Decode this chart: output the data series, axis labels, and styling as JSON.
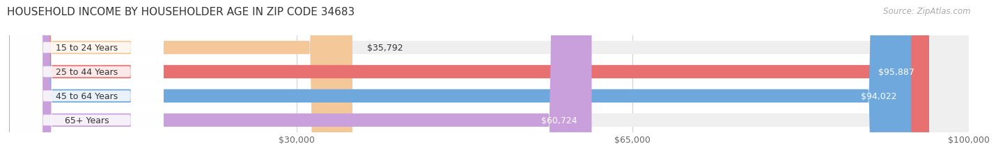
{
  "title": "HOUSEHOLD INCOME BY HOUSEHOLDER AGE IN ZIP CODE 34683",
  "source": "Source: ZipAtlas.com",
  "categories": [
    "15 to 24 Years",
    "25 to 44 Years",
    "45 to 64 Years",
    "65+ Years"
  ],
  "values": [
    35792,
    95887,
    94022,
    60724
  ],
  "bar_colors": [
    "#f5c89a",
    "#e87070",
    "#6fa8dc",
    "#c9a0dc"
  ],
  "bar_track_color": "#efefef",
  "value_labels": [
    "$35,792",
    "$95,887",
    "$94,022",
    "$60,724"
  ],
  "x_ticks": [
    30000,
    65000,
    100000
  ],
  "x_tick_labels": [
    "$30,000",
    "$65,000",
    "$100,000"
  ],
  "xlim": [
    0,
    100000
  ],
  "background_color": "#ffffff",
  "title_fontsize": 11,
  "label_fontsize": 9,
  "value_fontsize": 9,
  "source_fontsize": 8.5,
  "bar_height": 0.55,
  "figsize": [
    14.06,
    2.33
  ]
}
